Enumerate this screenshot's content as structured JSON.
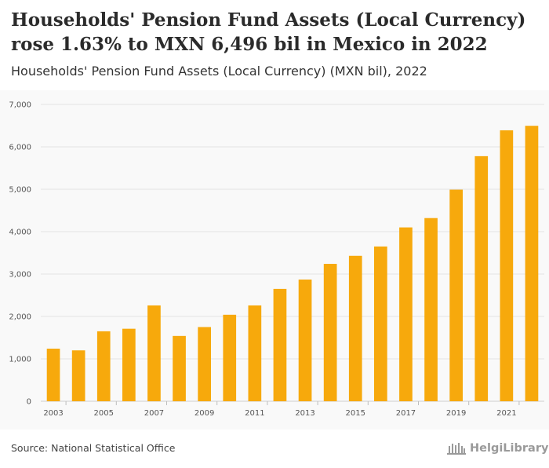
{
  "header": {
    "title_line1": "Households' Pension Fund Assets (Local Currency)",
    "title_line2": "rose 1.63% to MXN 6,496 bil in Mexico in 2022",
    "subtitle": "Households' Pension Fund Assets (Local Currency) (MXN bil), 2022"
  },
  "footer": {
    "source": "Source: National Statistical Office",
    "logo_text": "HelgiLibrary"
  },
  "colors": {
    "bar": "#f7a90c",
    "grid": "#e2e2e2",
    "axis_text": "#555555",
    "background": "#f9f9f9"
  },
  "chart_data": {
    "type": "bar",
    "title": "Households' Pension Fund Assets (Local Currency) (MXN bil), 2022",
    "xlabel": "",
    "ylabel": "",
    "ylim": [
      0,
      7000
    ],
    "y_ticks": [
      0,
      1000,
      2000,
      3000,
      4000,
      5000,
      6000,
      7000
    ],
    "y_tick_labels": [
      "0",
      "1,000",
      "2,000",
      "3,000",
      "4,000",
      "5,000",
      "6,000",
      "7,000"
    ],
    "x_tick_labels": [
      "2003",
      "2005",
      "2007",
      "2009",
      "2011",
      "2013",
      "2015",
      "2017",
      "2019",
      "2021"
    ],
    "categories": [
      "2003",
      "2004",
      "2005",
      "2006",
      "2007",
      "2008",
      "2009",
      "2010",
      "2011",
      "2012",
      "2013",
      "2014",
      "2015",
      "2016",
      "2017",
      "2018",
      "2019",
      "2020",
      "2021",
      "2022"
    ],
    "values": [
      1240,
      1200,
      1650,
      1710,
      2260,
      1540,
      1750,
      2040,
      2260,
      2650,
      2870,
      3240,
      3430,
      3650,
      4100,
      4320,
      4990,
      5780,
      6390,
      6496
    ],
    "grid": true
  }
}
